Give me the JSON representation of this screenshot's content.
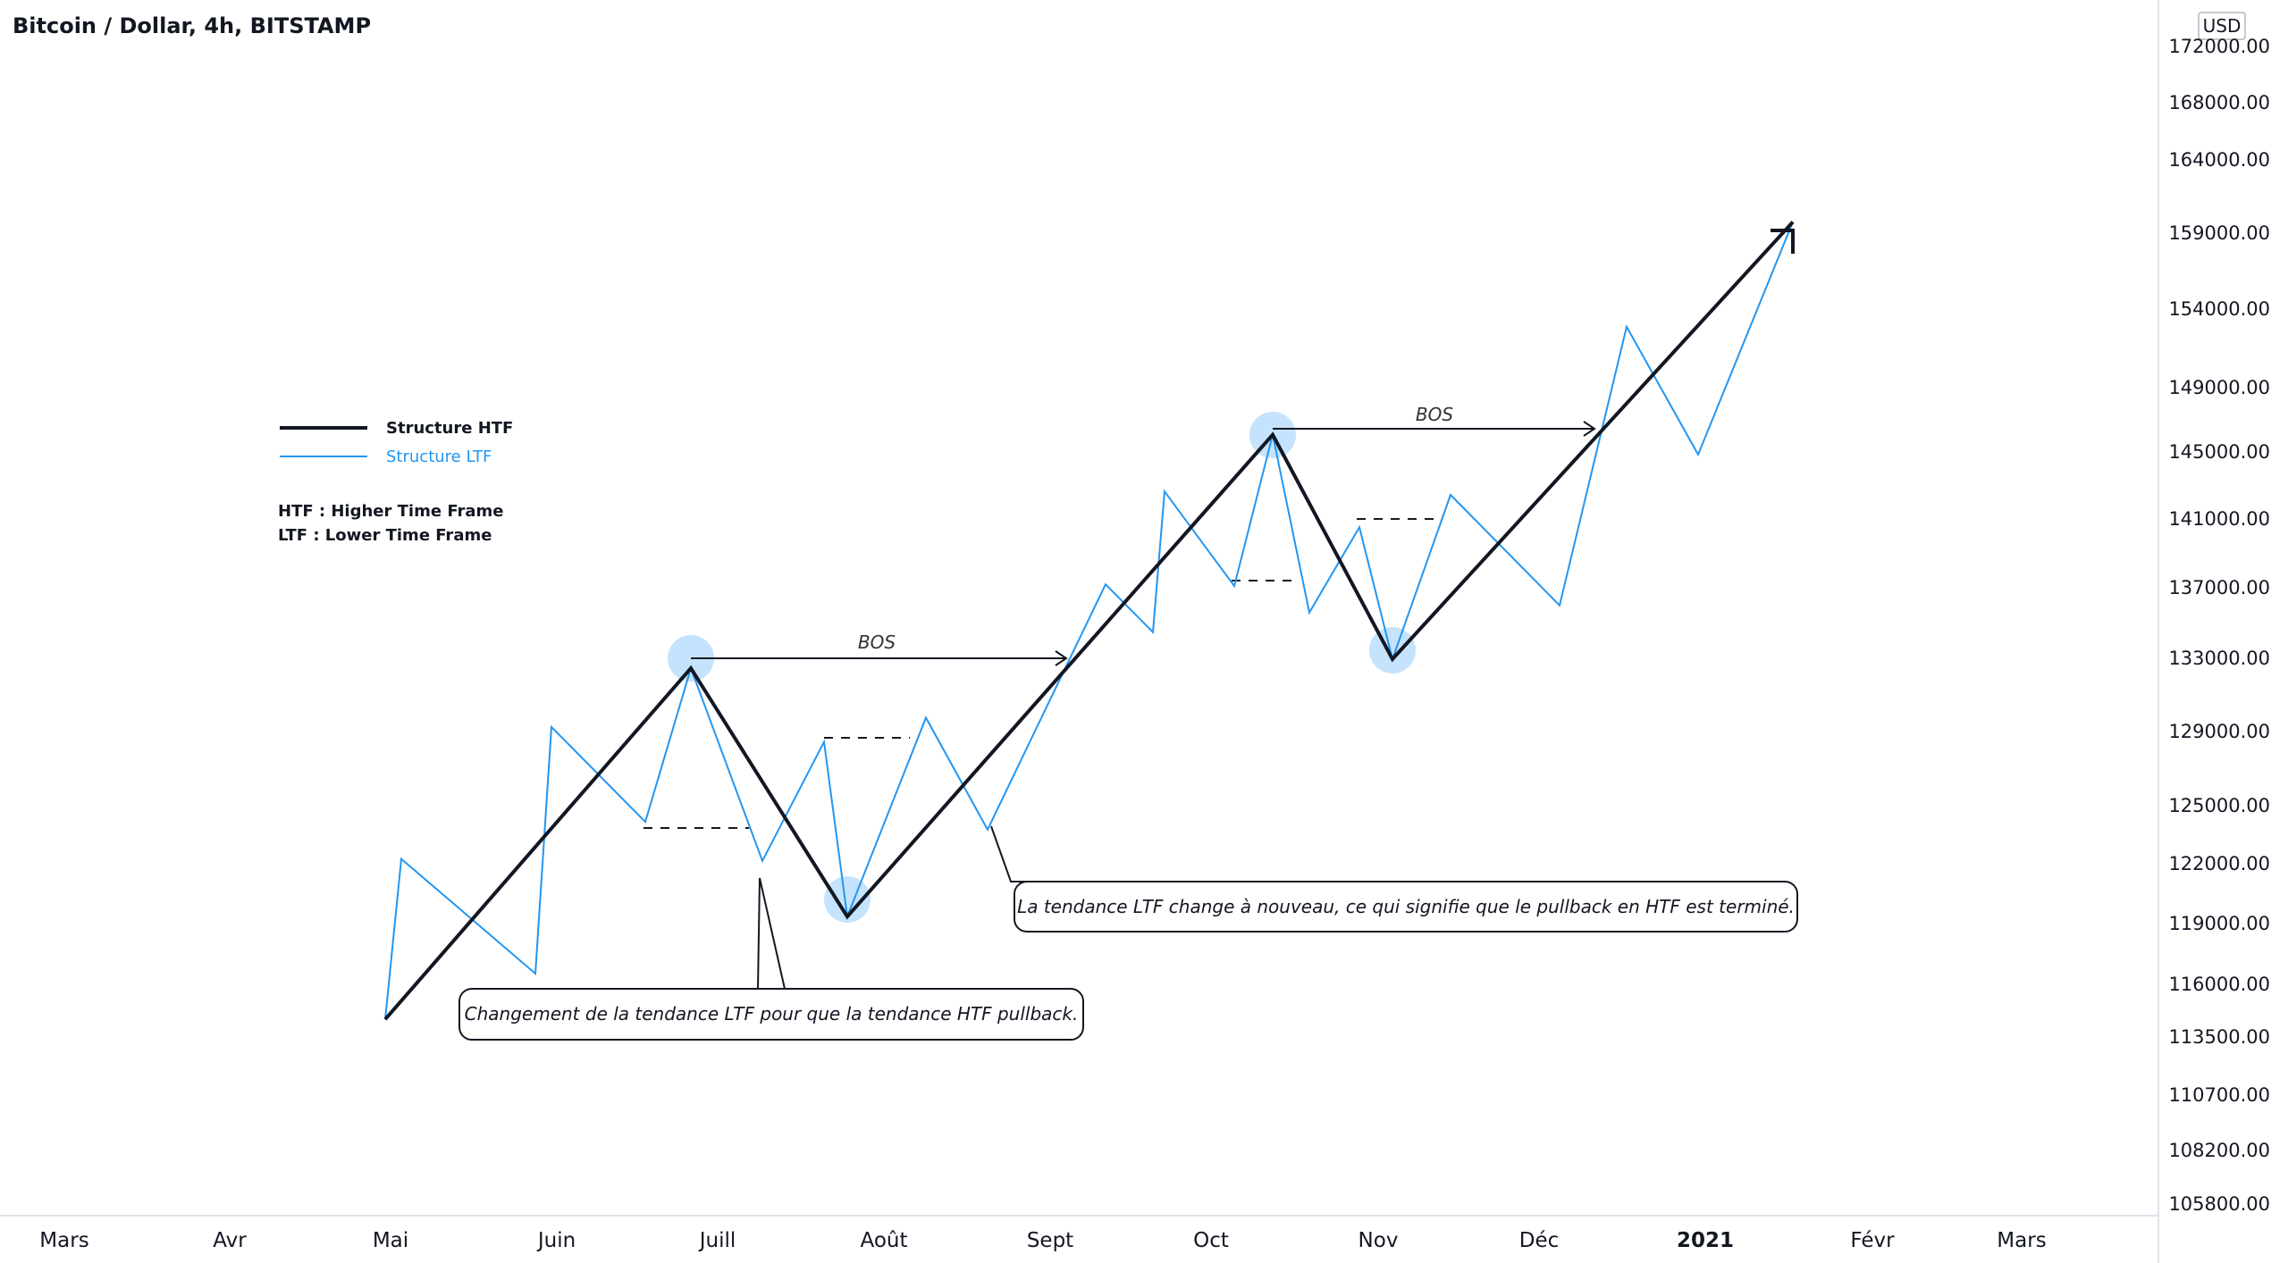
{
  "header": {
    "title": "Bitcoin / Dollar, 4h, BITSTAMP"
  },
  "price_axis": {
    "currency": "USD",
    "ticks": [
      "172000.00",
      "168000.00",
      "164000.00",
      "159000.00",
      "154000.00",
      "149000.00",
      "145000.00",
      "141000.00",
      "137000.00",
      "133000.00",
      "129000.00",
      "125000.00",
      "122000.00",
      "119000.00",
      "116000.00",
      "113500.00",
      "110700.00",
      "108200.00",
      "105800.00"
    ]
  },
  "time_axis": {
    "ticks": [
      "Mars",
      "Avr",
      "Mai",
      "Juin",
      "Juill",
      "Août",
      "Sept",
      "Oct",
      "Nov",
      "Déc",
      "2021",
      "Févr",
      "Mars"
    ],
    "bold_tick": "2021"
  },
  "legend": {
    "items": [
      {
        "label": "Structure HTF",
        "color": "#131722"
      },
      {
        "label": "Structure LTF",
        "color": "#2196f3"
      }
    ],
    "notes": [
      "HTF : Higher Time Frame",
      "LTF : Lower Time Frame"
    ]
  },
  "annotations": {
    "bos_label": "BOS",
    "callout_1": "Changement de la tendance LTF pour que la tendance HTF pullback.",
    "callout_2": "La tendance LTF change à nouveau, ce qui signifie que le pullback en HTF est terminé."
  },
  "colors": {
    "htf": "#131722",
    "ltf": "#2196f3",
    "highlight": "#bbdefb",
    "axis_line": "#e0e3eb"
  },
  "chart_data": {
    "type": "line",
    "title": "Bitcoin / Dollar, 4h, BITSTAMP",
    "x_ticks": [
      "Mars",
      "Avr",
      "Mai",
      "Juin",
      "Juill",
      "Août",
      "Sept",
      "Oct",
      "Nov",
      "Déc",
      "2021",
      "Févr",
      "Mars"
    ],
    "y_unit": "USD",
    "y_scale": "log",
    "ylim": [
      105000,
      173000
    ],
    "series": [
      {
        "name": "Structure HTF",
        "color": "#131722",
        "points": [
          [
            "Mai",
            114800
          ],
          [
            "Juill",
            132800
          ],
          [
            "Août",
            119800
          ],
          [
            "Oct",
            146300
          ],
          [
            "Nov",
            133300
          ],
          [
            "Janv",
            159800
          ]
        ]
      },
      {
        "name": "Structure LTF",
        "color": "#2196f3",
        "points": [
          [
            "Mai",
            114800
          ],
          [
            "Mai",
            122700
          ],
          [
            "Juin",
            117000
          ],
          [
            "Juin",
            129600
          ],
          [
            "Juin",
            124600
          ],
          [
            "Juill",
            132800
          ],
          [
            "Juill",
            122600
          ],
          [
            "Juill",
            128800
          ],
          [
            "Août",
            119800
          ],
          [
            "Août",
            130100
          ],
          [
            "Août",
            124200
          ],
          [
            "Sept",
            137500
          ],
          [
            "Sept",
            134800
          ],
          [
            "Sept",
            142900
          ],
          [
            "Oct",
            137400
          ],
          [
            "Oct",
            146300
          ],
          [
            "Oct",
            135900
          ],
          [
            "Oct",
            140800
          ],
          [
            "Nov",
            133300
          ],
          [
            "Nov",
            142700
          ],
          [
            "Déc",
            136300
          ],
          [
            "Déc",
            153000
          ],
          [
            "2021",
            145100
          ],
          [
            "Janv",
            159800
          ]
        ]
      }
    ],
    "levels": [
      {
        "type": "dashed",
        "value": 124000
      },
      {
        "type": "dashed",
        "value": 128700
      },
      {
        "type": "dashed",
        "value": 137400
      },
      {
        "type": "dashed",
        "value": 141000
      },
      {
        "type": "arrow",
        "label": "BOS",
        "value": 132800
      },
      {
        "type": "arrow",
        "label": "BOS",
        "value": 146300
      }
    ]
  }
}
